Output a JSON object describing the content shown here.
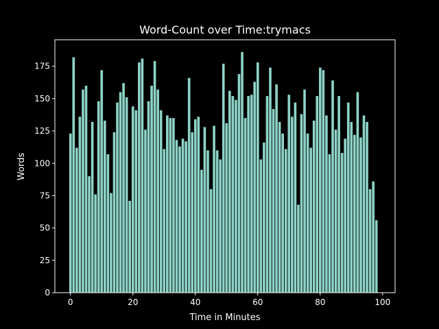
{
  "chart_data": {
    "type": "bar",
    "title": "Word-Count over Time:trymacs",
    "x_label": "Time in Minutes",
    "y_label": "Words",
    "color": "#8dd3c7",
    "x": [
      0,
      1,
      2,
      3,
      4,
      5,
      6,
      7,
      8,
      9,
      10,
      11,
      12,
      13,
      14,
      15,
      16,
      17,
      18,
      19,
      20,
      21,
      22,
      23,
      24,
      25,
      26,
      27,
      28,
      29,
      30,
      31,
      32,
      33,
      34,
      35,
      36,
      37,
      38,
      39,
      40,
      41,
      42,
      43,
      44,
      45,
      46,
      47,
      48,
      49,
      50,
      51,
      52,
      53,
      54,
      55,
      56,
      57,
      58,
      59,
      60,
      61,
      62,
      63,
      64,
      65,
      66,
      67,
      68,
      69,
      70,
      71,
      72,
      73,
      74,
      75,
      76,
      77,
      78,
      79,
      80,
      81,
      82,
      83,
      84,
      85,
      86,
      87,
      88,
      89,
      90,
      91,
      92,
      93,
      94,
      95,
      96,
      97,
      98,
      99
    ],
    "values": [
      123,
      182,
      112,
      136,
      157,
      160,
      90,
      132,
      76,
      148,
      172,
      133,
      107,
      77,
      124,
      147,
      155,
      162,
      151,
      71,
      144,
      141,
      178,
      181,
      126,
      148,
      160,
      179,
      157,
      141,
      111,
      137,
      135,
      135,
      118,
      113,
      119,
      117,
      166,
      124,
      134,
      136,
      95,
      128,
      110,
      80,
      129,
      110,
      103,
      177,
      131,
      156,
      152,
      149,
      169,
      186,
      135,
      152,
      153,
      163,
      178,
      103,
      116,
      152,
      174,
      142,
      161,
      132,
      123,
      111,
      153,
      136,
      147,
      68,
      138,
      157,
      123,
      112,
      133,
      152,
      174,
      172,
      137,
      107,
      164,
      126,
      152,
      108,
      119,
      147,
      132,
      122,
      155,
      120,
      137,
      132,
      80,
      86,
      56,
      0
    ],
    "xlim": [
      -5,
      104
    ],
    "ylim": [
      0,
      195.5
    ],
    "xticks": [
      0,
      20,
      40,
      60,
      80,
      100
    ],
    "yticks": [
      0,
      25,
      50,
      75,
      100,
      125,
      150,
      175
    ],
    "bar_width": 0.8
  }
}
